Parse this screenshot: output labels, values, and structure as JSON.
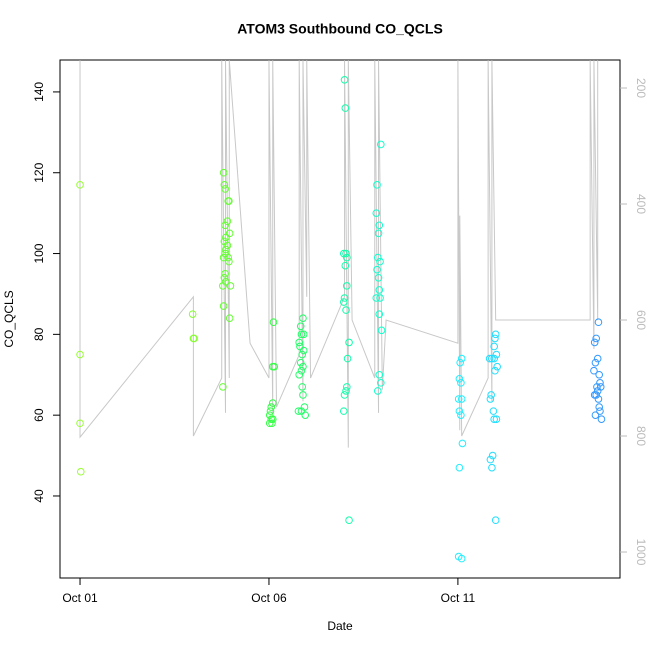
{
  "chart_data": {
    "type": "scatter",
    "title": "ATOM3 Southbound CO_QCLS",
    "x_label": "Date",
    "y_label": "CO_QCLS",
    "xlim": [
      -0.53,
      14.29
    ],
    "xticks": [
      {
        "value": 0,
        "label": "Oct 01"
      },
      {
        "value": 5,
        "label": "Oct 06"
      },
      {
        "value": 10,
        "label": "Oct 11"
      }
    ],
    "ylim": [
      19.7,
      147.9
    ],
    "yticks": [
      40,
      60,
      80,
      100,
      120,
      140
    ],
    "y2lim": [
      1044.8,
      151.7
    ],
    "y2ticks": [
      200,
      400,
      600,
      800,
      1000
    ],
    "series": [
      {
        "color": "#99ff33",
        "x": [
          0,
          0,
          0,
          0.02
        ],
        "values": [
          117,
          75,
          58,
          46
        ]
      },
      {
        "color": "#88ff33",
        "x": [
          2.98,
          3.0,
          3.02
        ],
        "values": [
          85,
          79,
          79
        ]
      },
      {
        "color": "#66ff33",
        "x": [
          3.8,
          3.82,
          3.84,
          3.92,
          3.94,
          3.9,
          3.84,
          3.96,
          3.86,
          3.82,
          3.9,
          3.86,
          3.84,
          3.8,
          3.92,
          3.94,
          3.84,
          3.82,
          3.86,
          3.78,
          3.98,
          3.8,
          3.96,
          3.78
        ],
        "values": [
          120,
          117,
          116,
          113,
          113,
          108,
          107,
          105,
          104,
          103,
          102,
          101,
          100,
          99,
          99,
          98,
          95,
          94,
          93,
          92,
          92,
          87,
          84,
          67
        ]
      },
      {
        "color": "#33ff44",
        "x": [
          5.12,
          5.1,
          5.14,
          5.1,
          5.06,
          5.04,
          5.02,
          5.06,
          5.1,
          5.02,
          5.08
        ],
        "values": [
          83,
          72,
          72,
          63,
          62,
          61,
          60,
          59,
          59,
          58,
          58
        ]
      },
      {
        "color": "#22ff66",
        "x": [
          5.9,
          5.84,
          5.86,
          5.92,
          5.8,
          5.82,
          5.92,
          5.88,
          5.84,
          5.9,
          5.86,
          5.8,
          5.88,
          5.9,
          5.94,
          5.78,
          5.86,
          5.96
        ],
        "values": [
          84,
          82,
          80,
          80,
          78,
          77,
          76,
          75,
          73,
          72,
          71,
          70,
          67,
          65,
          62,
          61,
          61,
          60
        ]
      },
      {
        "color": "#11ffaa",
        "x": [
          7.0,
          7.02,
          6.98,
          7.04,
          7.06,
          7.02,
          7.06,
          7.0,
          6.98,
          7.04,
          7.12,
          7.08,
          7.06,
          7.04,
          7.0,
          6.98,
          7.12
        ],
        "values": [
          143,
          136,
          100,
          100,
          99,
          97,
          92,
          89,
          88,
          86,
          78,
          74,
          67,
          66,
          65,
          61,
          34
        ]
      },
      {
        "color": "#11ffcc",
        "x": [
          7.96,
          7.86,
          7.84,
          7.92,
          7.9,
          7.88,
          7.94,
          7.86,
          7.9,
          7.92,
          7.84,
          7.94,
          7.92,
          7.98,
          7.92,
          7.96,
          7.88
        ],
        "values": [
          127,
          117,
          110,
          107,
          105,
          99,
          98,
          96,
          94,
          91,
          89,
          89,
          85,
          81,
          70,
          68,
          66
        ]
      },
      {
        "color": "#22eeff",
        "x": [
          10.1,
          10.06,
          10.04,
          10.08,
          10.02,
          10.1,
          10.04,
          10.08,
          10.12,
          10.04,
          10.02,
          10.1
        ],
        "values": [
          74,
          73,
          69,
          68,
          64,
          64,
          61,
          60,
          53,
          47,
          25,
          24.5
        ]
      },
      {
        "color": "#22ddff",
        "x": [
          11.0,
          10.98,
          10.96,
          11.02,
          10.84,
          10.9,
          10.96,
          11.04,
          10.98,
          10.88,
          10.86,
          10.94,
          10.96,
          11.02,
          10.92,
          10.86,
          10.9,
          11.0
        ],
        "values": [
          80,
          79,
          77,
          75,
          74,
          74,
          74,
          72,
          71,
          65,
          64,
          61,
          59,
          59,
          50,
          49,
          47,
          34
        ]
      },
      {
        "color": "#3399ff",
        "x": [
          13.72,
          13.66,
          13.62,
          13.7,
          13.64,
          13.6,
          13.74,
          13.76,
          13.68,
          13.78,
          13.7,
          13.62,
          13.66,
          13.72,
          13.74,
          13.76,
          13.64,
          13.8
        ],
        "values": [
          83,
          79,
          78,
          74,
          73,
          71,
          70,
          68,
          67,
          67,
          66,
          65,
          65,
          64,
          62,
          61,
          60,
          59
        ]
      },
      {
        "type": "line",
        "axis": "y2",
        "color": "#c8c8c8",
        "x": [
          0,
          0,
          3.0,
          3.0,
          3.75,
          3.75,
          3.85,
          3.85,
          3.95,
          3.95,
          4.5,
          5.0,
          5.0,
          5.1,
          5.1,
          5.2,
          5.8,
          5.8,
          5.9,
          5.9,
          6.0,
          6.0,
          6.1,
          7.0,
          7.0,
          7.1,
          7.1,
          7.2,
          7.8,
          7.8,
          7.9,
          7.9,
          8.0,
          8.1,
          10.0,
          10.0,
          10.05,
          10.05,
          10.1,
          10.8,
          10.8,
          10.9,
          10.9,
          11.0,
          13.5,
          13.5,
          13.6,
          13.6,
          13.7,
          13.7
        ],
        "values": [
          152,
          802,
          560,
          800,
          700,
          152,
          760,
          152,
          700,
          152,
          640,
          700,
          152,
          760,
          152,
          750,
          660,
          152,
          740,
          152,
          560,
          152,
          700,
          560,
          152,
          820,
          152,
          600,
          700,
          152,
          760,
          152,
          720,
          600,
          640,
          152,
          790,
          420,
          800,
          700,
          152,
          740,
          152,
          600,
          600,
          152,
          650,
          152,
          600,
          152
        ]
      }
    ]
  }
}
